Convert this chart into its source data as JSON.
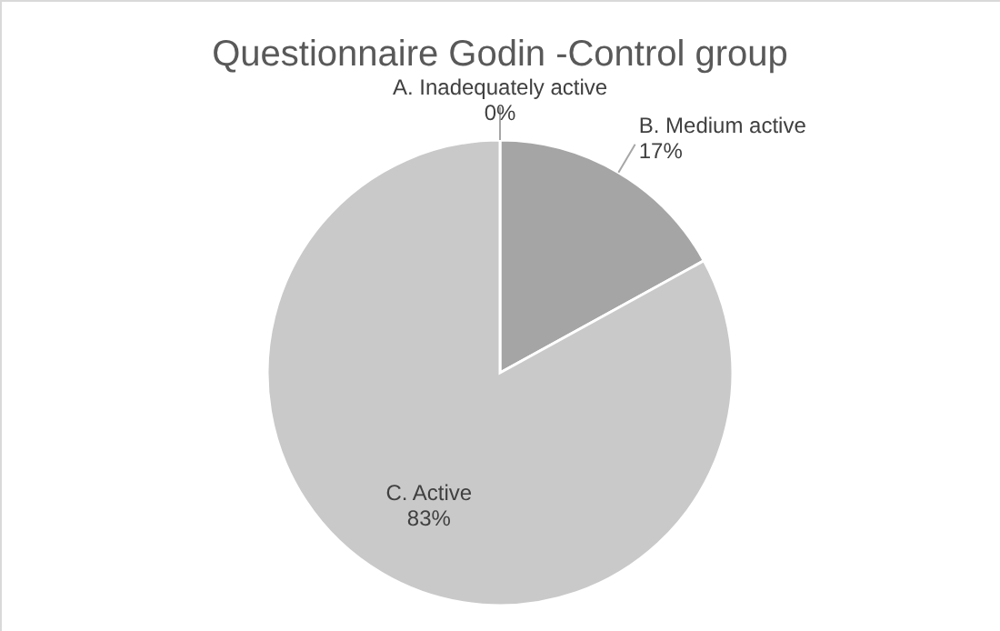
{
  "chart_data": {
    "type": "pie",
    "title": "Questionnaire Godin -Control group",
    "categories": [
      "A. Inadequately active",
      "B. Medium active",
      "C. Active"
    ],
    "values": [
      0,
      17,
      83
    ],
    "colors": [
      "#7f7f7f",
      "#a5a5a5",
      "#c9c9c9"
    ],
    "value_labels": [
      "0%",
      "17%",
      "83%"
    ]
  }
}
